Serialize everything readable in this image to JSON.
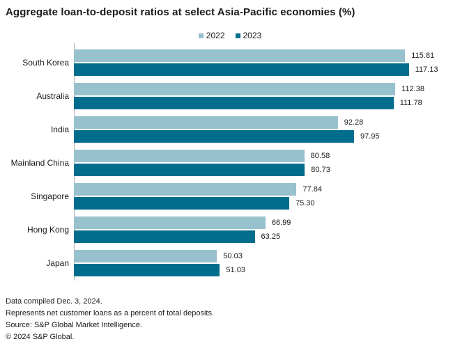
{
  "title": "Aggregate loan-to-deposit ratios at select Asia-Pacific economies (%)",
  "colors": {
    "series_2022": "#98C1CE",
    "series_2023": "#006D8D",
    "axis_line": "#b3b3b3",
    "text": "#1a1a1a"
  },
  "legend": {
    "items": [
      {
        "label": "2022",
        "color": "#98C1CE"
      },
      {
        "label": "2023",
        "color": "#006D8D"
      }
    ]
  },
  "chart_data": {
    "type": "bar",
    "orientation": "horizontal",
    "title": "Aggregate loan-to-deposit ratios at select Asia-Pacific economies (%)",
    "categories": [
      "South Korea",
      "Australia",
      "India",
      "Mainland China",
      "Singapore",
      "Hong Kong",
      "Japan"
    ],
    "series": [
      {
        "name": "2022",
        "color": "#98C1CE",
        "values": [
          115.81,
          112.38,
          92.28,
          80.58,
          77.84,
          66.99,
          50.03
        ],
        "labels": [
          "115.81",
          "112.38",
          "92.28",
          "80.58",
          "77.84",
          "66.99",
          "50.03"
        ]
      },
      {
        "name": "2023",
        "color": "#006D8D",
        "values": [
          117.13,
          111.78,
          97.95,
          80.73,
          75.3,
          63.25,
          51.03
        ],
        "labels": [
          "117.13",
          "111.78",
          "97.95",
          "80.73",
          "75.30",
          "63.25",
          "51.03"
        ]
      }
    ],
    "xlim": [
      0,
      135
    ],
    "value_labels": true,
    "grid": false,
    "legend_position": "top-center"
  },
  "footer": {
    "lines": [
      "Data compiled Dec. 3, 2024.",
      "Represents net customer loans as a percent of total deposits.",
      "Source: S&P Global Market Intelligence.",
      "© 2024 S&P Global."
    ]
  }
}
